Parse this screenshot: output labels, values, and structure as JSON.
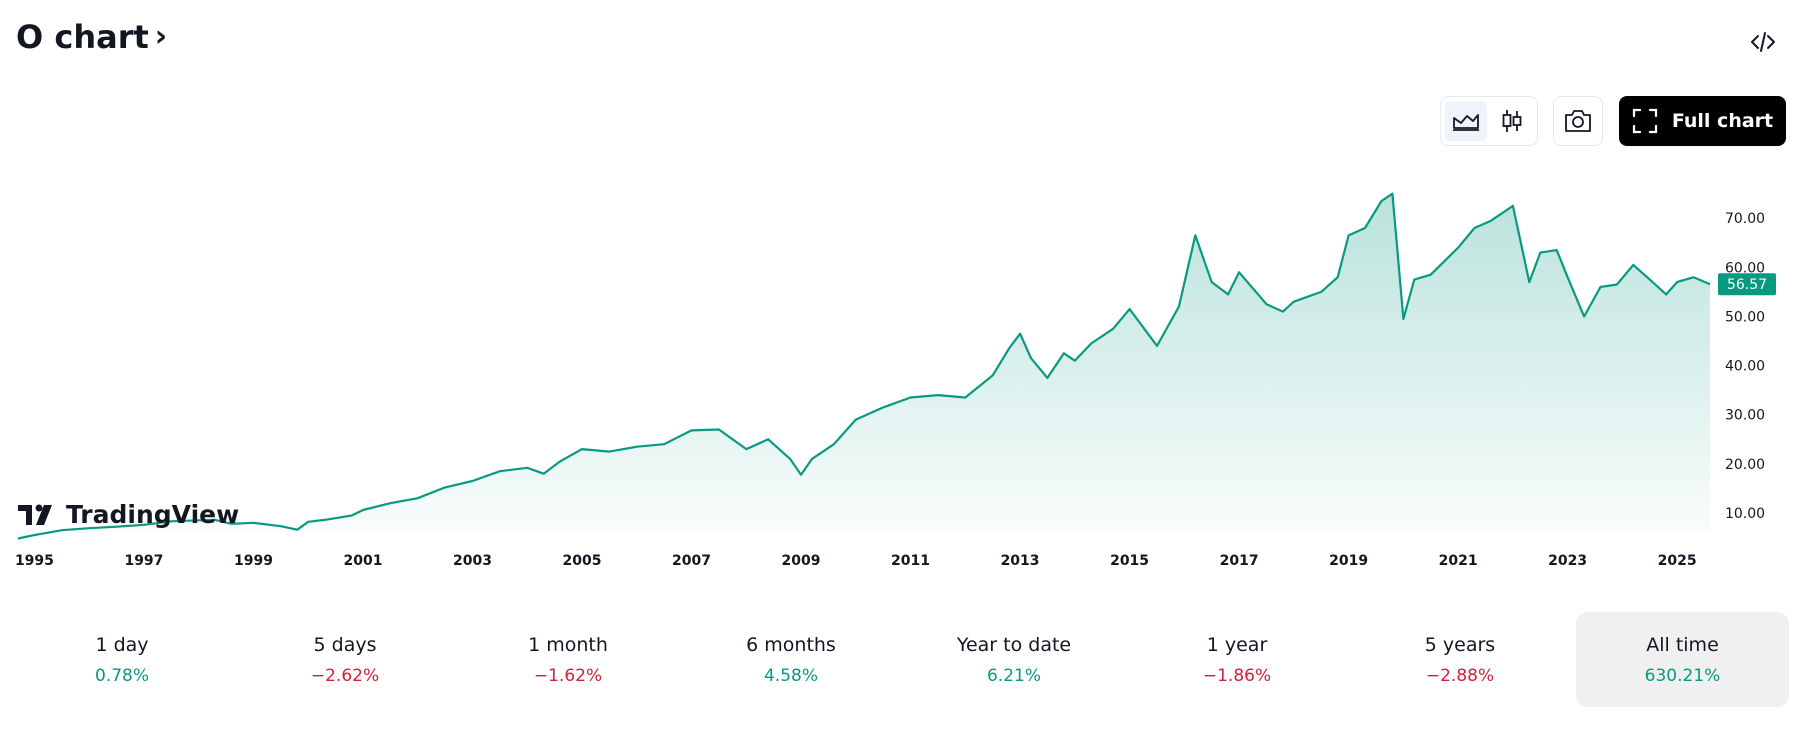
{
  "header": {
    "title": "O chart",
    "chevron": "›",
    "embed_icon": "code-icon"
  },
  "toolbar": {
    "area_icon": "area-chart-icon",
    "candle_icon": "candlestick-icon",
    "snapshot_icon": "camera-icon",
    "full_chart_label": "Full chart",
    "full_chart_icon": "fullscreen-icon"
  },
  "logo": {
    "text": "TradingView"
  },
  "colors": {
    "line": "#089981",
    "positive": "#089981",
    "negative": "#d1213a",
    "badge": "#089981"
  },
  "chart_data": {
    "type": "area",
    "title": "",
    "xlabel": "",
    "ylabel": "",
    "x_ticks": [
      "1995",
      "1997",
      "1999",
      "2001",
      "2003",
      "2005",
      "2007",
      "2009",
      "2011",
      "2013",
      "2015",
      "2017",
      "2019",
      "2021",
      "2023",
      "2025"
    ],
    "y_ticks": [
      "10.00",
      "20.00",
      "30.00",
      "40.00",
      "50.00",
      "60.00",
      "70.00"
    ],
    "ylim": [
      4.5,
      79
    ],
    "xlim": [
      1994.7,
      2025.6
    ],
    "last_price": "56.57",
    "grid": false,
    "series": [
      {
        "x": [
          1994.7,
          1995.0,
          1995.5,
          1996.0,
          1996.5,
          1997.0,
          1997.5,
          1998.0,
          1998.3,
          1998.6,
          1999.0,
          1999.5,
          1999.8,
          2000.0,
          2000.3,
          2000.8,
          2001.0,
          2001.5,
          2002.0,
          2002.5,
          2003.0,
          2003.5,
          2004.0,
          2004.3,
          2004.6,
          2005.0,
          2005.5,
          2006.0,
          2006.5,
          2007.0,
          2007.5,
          2008.0,
          2008.4,
          2008.8,
          2009.0,
          2009.2,
          2009.6,
          2010.0,
          2010.5,
          2011.0,
          2011.5,
          2012.0,
          2012.5,
          2012.8,
          2013.0,
          2013.2,
          2013.5,
          2013.8,
          2014.0,
          2014.3,
          2014.7,
          2015.0,
          2015.5,
          2015.9,
          2016.2,
          2016.5,
          2016.8,
          2017.0,
          2017.5,
          2017.8,
          2018.0,
          2018.5,
          2018.8,
          2019.0,
          2019.3,
          2019.6,
          2019.8,
          2020.0,
          2020.2,
          2020.5,
          2021.0,
          2021.3,
          2021.6,
          2022.0,
          2022.3,
          2022.5,
          2022.8,
          2023.0,
          2023.3,
          2023.6,
          2023.9,
          2024.2,
          2024.5,
          2024.8,
          2025.0,
          2025.3,
          2025.6
        ],
        "y": [
          4.8,
          5.5,
          6.5,
          6.9,
          7.2,
          7.6,
          8.3,
          8.5,
          8.6,
          7.8,
          8.0,
          7.3,
          6.6,
          8.2,
          8.6,
          9.5,
          10.6,
          12.0,
          13.0,
          15.2,
          16.5,
          18.5,
          19.2,
          18.0,
          20.5,
          23.0,
          22.5,
          23.5,
          24.0,
          26.8,
          27.0,
          23.0,
          25.0,
          21.0,
          17.8,
          21.0,
          24.0,
          29.0,
          31.5,
          33.5,
          34.0,
          33.5,
          38.0,
          43.5,
          46.5,
          41.5,
          37.5,
          42.5,
          41.0,
          44.5,
          47.5,
          51.5,
          44.0,
          52.0,
          66.5,
          57.0,
          54.5,
          59.0,
          52.5,
          51.0,
          53.0,
          55.0,
          58.0,
          66.5,
          68.0,
          73.5,
          75.0,
          49.5,
          57.5,
          58.5,
          64.0,
          68.0,
          69.5,
          72.5,
          57.0,
          63.0,
          63.5,
          58.0,
          50.0,
          56.0,
          56.5,
          60.5,
          57.5,
          54.5,
          57.0,
          58.0,
          56.57
        ],
        "color": "#089981"
      }
    ],
    "periods": [
      {
        "label": "1 day",
        "value": "0.78%",
        "sign": "pos"
      },
      {
        "label": "5 days",
        "value": "−2.62%",
        "sign": "neg"
      },
      {
        "label": "1 month",
        "value": "−1.62%",
        "sign": "neg"
      },
      {
        "label": "6 months",
        "value": "4.58%",
        "sign": "pos"
      },
      {
        "label": "Year to date",
        "value": "6.21%",
        "sign": "pos"
      },
      {
        "label": "1 year",
        "value": "−1.86%",
        "sign": "neg"
      },
      {
        "label": "5 years",
        "value": "−2.88%",
        "sign": "neg"
      },
      {
        "label": "All time",
        "value": "630.21%",
        "sign": "pos"
      }
    ]
  }
}
